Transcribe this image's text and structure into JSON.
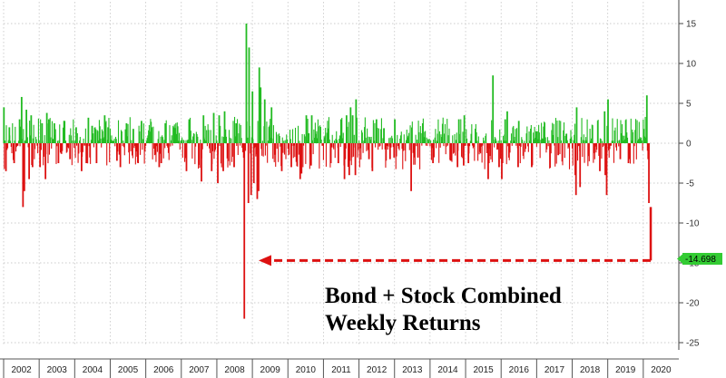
{
  "chart_data": {
    "type": "bar",
    "ylim": [
      -25,
      17
    ],
    "yticks": [
      15,
      10,
      5,
      0,
      -5,
      -10,
      -15,
      -20,
      -25
    ],
    "x_range": [
      2002,
      2021
    ],
    "year_labels": [
      "2002",
      "2003",
      "2004",
      "2005",
      "2006",
      "2007",
      "2008",
      "2009",
      "2010",
      "2011",
      "2012",
      "2013",
      "2014",
      "2015",
      "2016",
      "2017",
      "2018",
      "2019",
      "2020"
    ],
    "grid": true,
    "colors": {
      "positive": "#22bb22",
      "negative": "#dd1111",
      "arrow": "#dd1111",
      "last_value_box": "#33cc33"
    },
    "last_value": -14.698,
    "last_value_label": "-14.698",
    "annotation": [
      "Bond + Stock Combined",
      "Weekly Returns"
    ],
    "series": [
      {
        "values": [
          [
            "2002-01-04",
            4.5
          ],
          [
            "2002-01-25",
            -3.5
          ],
          [
            "2002-03-01",
            2.0
          ],
          [
            "2002-04-19",
            -2.5
          ],
          [
            "2002-06-14",
            3.0
          ],
          [
            "2002-07-05",
            5.8
          ],
          [
            "2002-07-19",
            -8.0
          ],
          [
            "2002-08-02",
            -6.0
          ],
          [
            "2002-08-23",
            4.2
          ],
          [
            "2002-09-20",
            -4.5
          ],
          [
            "2002-10-11",
            3.5
          ],
          [
            "2002-10-25",
            -3.0
          ],
          [
            "2003-01-10",
            -3.0
          ],
          [
            "2003-01-31",
            2.5
          ],
          [
            "2003-03-07",
            -4.5
          ],
          [
            "2003-03-21",
            3.8
          ],
          [
            "2003-04-11",
            3.0
          ],
          [
            "2003-06-06",
            2.5
          ],
          [
            "2003-07-18",
            -2.5
          ],
          [
            "2003-09-19",
            2.8
          ],
          [
            "2003-11-14",
            -2.0
          ],
          [
            "2004-01-16",
            2.0
          ],
          [
            "2004-03-12",
            -3.5
          ],
          [
            "2004-04-30",
            -2.5
          ],
          [
            "2004-05-21",
            3.2
          ],
          [
            "2004-08-13",
            -2.5
          ],
          [
            "2004-11-05",
            3.5
          ],
          [
            "2004-12-10",
            2.0
          ],
          [
            "2005-03-11",
            -2.2
          ],
          [
            "2005-04-15",
            -3.0
          ],
          [
            "2005-06-17",
            2.5
          ],
          [
            "2005-08-26",
            1.8
          ],
          [
            "2005-10-14",
            -2.5
          ],
          [
            "2005-11-18",
            2.8
          ],
          [
            "2006-03-03",
            2.0
          ],
          [
            "2006-05-19",
            -3.0
          ],
          [
            "2006-06-09",
            -2.5
          ],
          [
            "2006-07-21",
            2.5
          ],
          [
            "2006-10-13",
            2.0
          ],
          [
            "2007-02-23",
            -3.5
          ],
          [
            "2007-03-23",
            3.0
          ],
          [
            "2007-07-27",
            -4.8
          ],
          [
            "2007-08-17",
            3.5
          ],
          [
            "2007-11-09",
            -3.5
          ],
          [
            "2007-11-30",
            3.8
          ],
          [
            "2008-01-11",
            -5.0
          ],
          [
            "2008-01-25",
            3.5
          ],
          [
            "2008-03-07",
            -3.5
          ],
          [
            "2008-03-21",
            4.0
          ],
          [
            "2008-06-27",
            -3.0
          ],
          [
            "2008-07-18",
            2.5
          ],
          [
            "2008-10-10",
            -22.0
          ],
          [
            "2008-10-31",
            15.0
          ],
          [
            "2008-11-21",
            -7.5
          ],
          [
            "2008-11-28",
            12.0
          ],
          [
            "2008-12-19",
            -6.5
          ],
          [
            "2009-01-02",
            6.5
          ],
          [
            "2009-01-16",
            -5.0
          ],
          [
            "2009-02-20",
            -7.0
          ],
          [
            "2009-03-06",
            -6.0
          ],
          [
            "2009-03-13",
            9.5
          ],
          [
            "2009-03-27",
            7.0
          ],
          [
            "2009-05-08",
            5.5
          ],
          [
            "2009-07-17",
            4.5
          ],
          [
            "2009-10-30",
            -3.5
          ],
          [
            "2010-02-05",
            -3.0
          ],
          [
            "2010-05-07",
            -4.5
          ],
          [
            "2010-05-21",
            -3.8
          ],
          [
            "2010-07-09",
            3.5
          ],
          [
            "2010-08-27",
            -2.8
          ],
          [
            "2010-09-03",
            3.5
          ],
          [
            "2011-03-18",
            -2.5
          ],
          [
            "2011-06-03",
            -2.5
          ],
          [
            "2011-07-01",
            3.0
          ],
          [
            "2011-08-05",
            -4.5
          ],
          [
            "2011-08-12",
            -2.0
          ],
          [
            "2011-08-26",
            3.5
          ],
          [
            "2011-09-23",
            -4.0
          ],
          [
            "2011-10-07",
            4.5
          ],
          [
            "2011-10-28",
            3.5
          ],
          [
            "2011-11-25",
            -4.0
          ],
          [
            "2011-12-02",
            5.5
          ],
          [
            "2012-04-13",
            -2.0
          ],
          [
            "2012-05-18",
            -3.5
          ],
          [
            "2012-06-29",
            3.0
          ],
          [
            "2012-11-16",
            -2.0
          ],
          [
            "2012-12-28",
            -1.8
          ],
          [
            "2013-01-04",
            3.0
          ],
          [
            "2013-06-21",
            -6.0
          ],
          [
            "2013-08-30",
            -1.8
          ],
          [
            "2013-10-18",
            2.5
          ],
          [
            "2014-01-31",
            -2.5
          ],
          [
            "2014-08-01",
            -2.2
          ],
          [
            "2014-10-10",
            -3.0
          ],
          [
            "2014-10-24",
            3.0
          ],
          [
            "2014-12-12",
            -2.8
          ],
          [
            "2014-12-19",
            3.5
          ],
          [
            "2015-01-30",
            -2.5
          ],
          [
            "2015-08-21",
            -4.5
          ],
          [
            "2015-08-28",
            -2.5
          ],
          [
            "2015-10-09",
            8.5
          ],
          [
            "2015-12-11",
            -3.0
          ],
          [
            "2016-01-08",
            -4.5
          ],
          [
            "2016-01-15",
            -2.5
          ],
          [
            "2016-02-12",
            3.0
          ],
          [
            "2016-03-04",
            4.0
          ],
          [
            "2016-06-24",
            -3.0
          ],
          [
            "2016-07-01",
            2.8
          ],
          [
            "2016-11-11",
            -3.0
          ],
          [
            "2017-01-06",
            1.5
          ],
          [
            "2017-08-11",
            -1.5
          ],
          [
            "2017-11-03",
            1.2
          ],
          [
            "2018-02-02",
            -4.0
          ],
          [
            "2018-02-09",
            -6.5
          ],
          [
            "2018-02-16",
            4.5
          ],
          [
            "2018-03-23",
            -5.5
          ],
          [
            "2018-10-12",
            -3.5
          ],
          [
            "2018-11-30",
            4.0
          ],
          [
            "2018-12-07",
            -4.0
          ],
          [
            "2018-12-21",
            -6.5
          ],
          [
            "2019-01-04",
            5.5
          ],
          [
            "2019-05-10",
            -2.0
          ],
          [
            "2019-08-02",
            -2.5
          ],
          [
            "2019-08-16",
            -2.0
          ],
          [
            "2020-02-07",
            6.0
          ],
          [
            "2020-02-21",
            -2.0
          ],
          [
            "2020-02-28",
            -7.5
          ]
        ]
      }
    ]
  }
}
